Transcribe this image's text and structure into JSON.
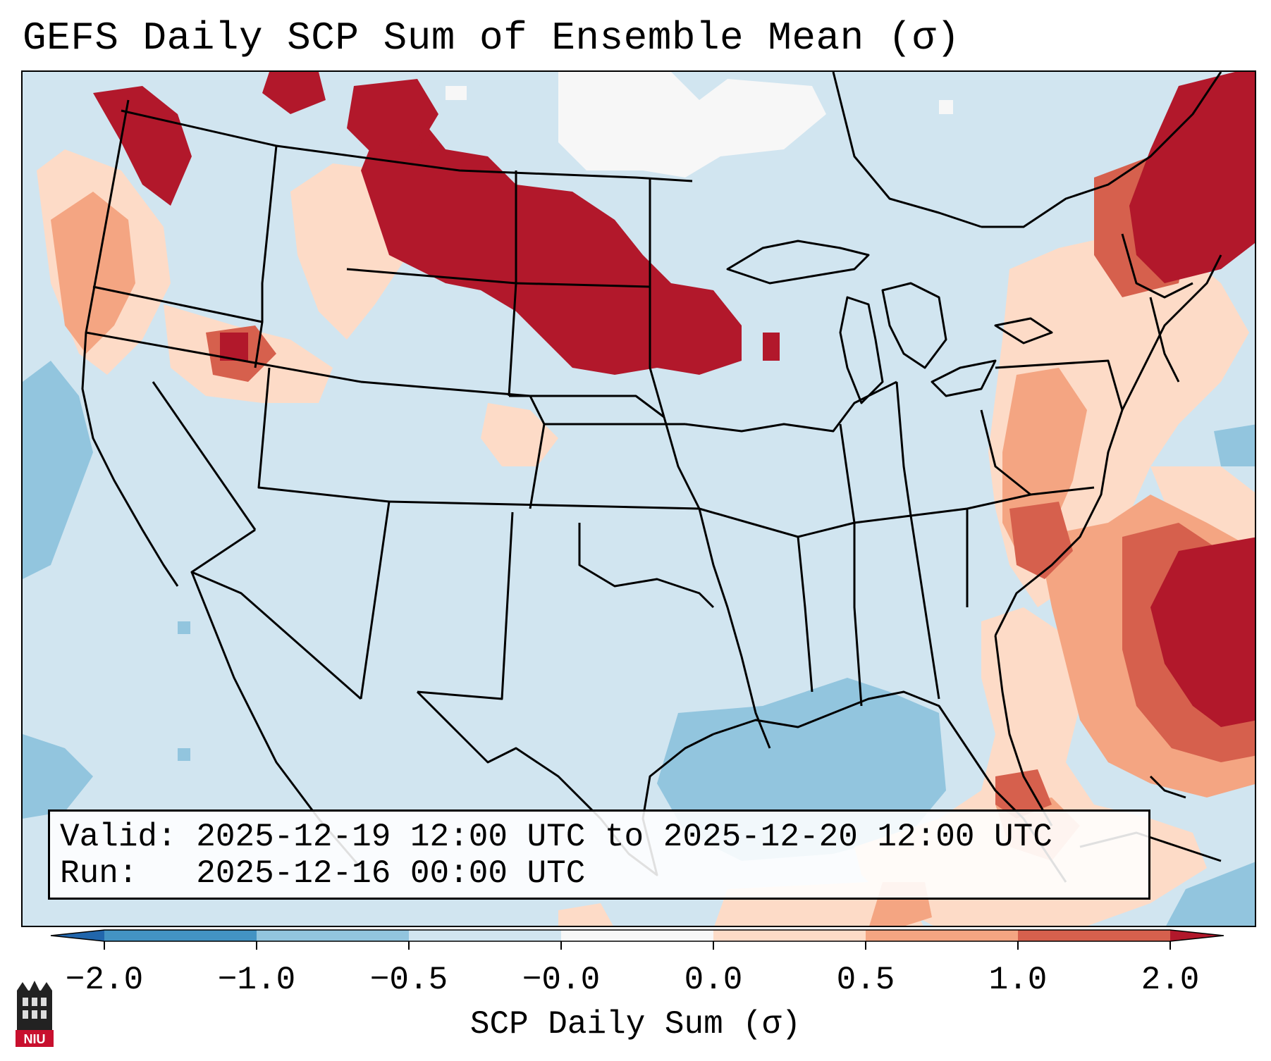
{
  "title": "GEFS Daily SCP Sum of Ensemble Mean (σ)",
  "info": {
    "valid_label": "Valid:",
    "valid_value": "2025-12-19 12:00 UTC to 2025-12-20 12:00 UTC",
    "run_label": "Run:",
    "run_value": "2025-12-16 00:00 UTC"
  },
  "colorbar": {
    "label": "SCP Daily Sum (σ)",
    "ticks": [
      "−2.0",
      "−1.0",
      "−0.5",
      "−0.0",
      "0.0",
      "0.5",
      "1.0",
      "2.0"
    ],
    "colors": [
      "#2166ac",
      "#4393c3",
      "#92c5de",
      "#d1e5f0",
      "#f7f7f7",
      "#fddbc7",
      "#f4a582",
      "#d6604d",
      "#b2182b"
    ]
  },
  "map": {
    "region": "Continental United States",
    "variable": "Supercell Composite Parameter daily sum anomaly",
    "units": "σ"
  },
  "logo": {
    "text": "NIU"
  }
}
